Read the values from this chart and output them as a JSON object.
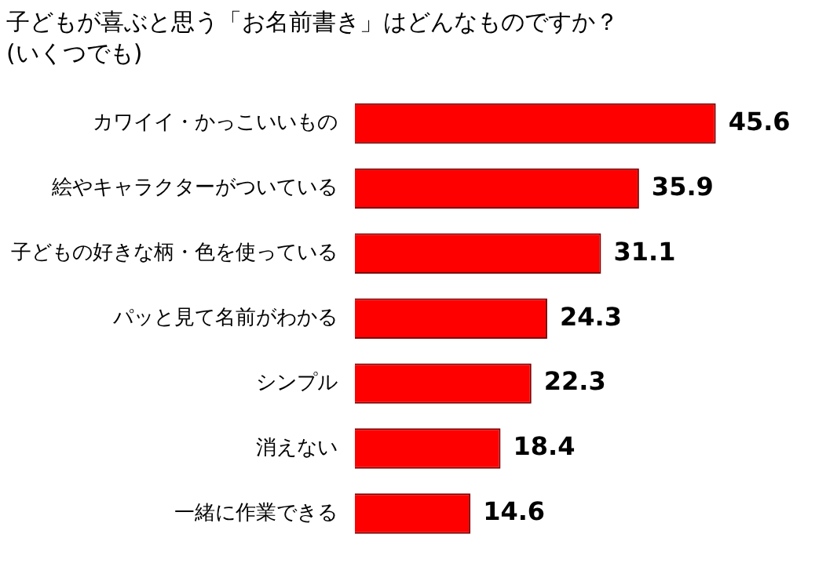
{
  "chart_data": {
    "type": "bar",
    "orientation": "horizontal",
    "title": "子どもが喜ぶと思う「お名前書き」はどんなものですか？",
    "subtitle": "(いくつでも)",
    "categories": [
      "カワイイ・かっこいいもの",
      "絵やキャラクターがついている",
      "子どもの好きな柄・色を使っている",
      "パッと見て名前がわかる",
      "シンプル",
      "消えない",
      "一緒に作業できる"
    ],
    "values": [
      45.6,
      35.9,
      31.1,
      24.3,
      22.3,
      18.4,
      14.6
    ],
    "color": "#ff0000",
    "data_labels": true,
    "legend": false,
    "tick_labels": "y"
  }
}
